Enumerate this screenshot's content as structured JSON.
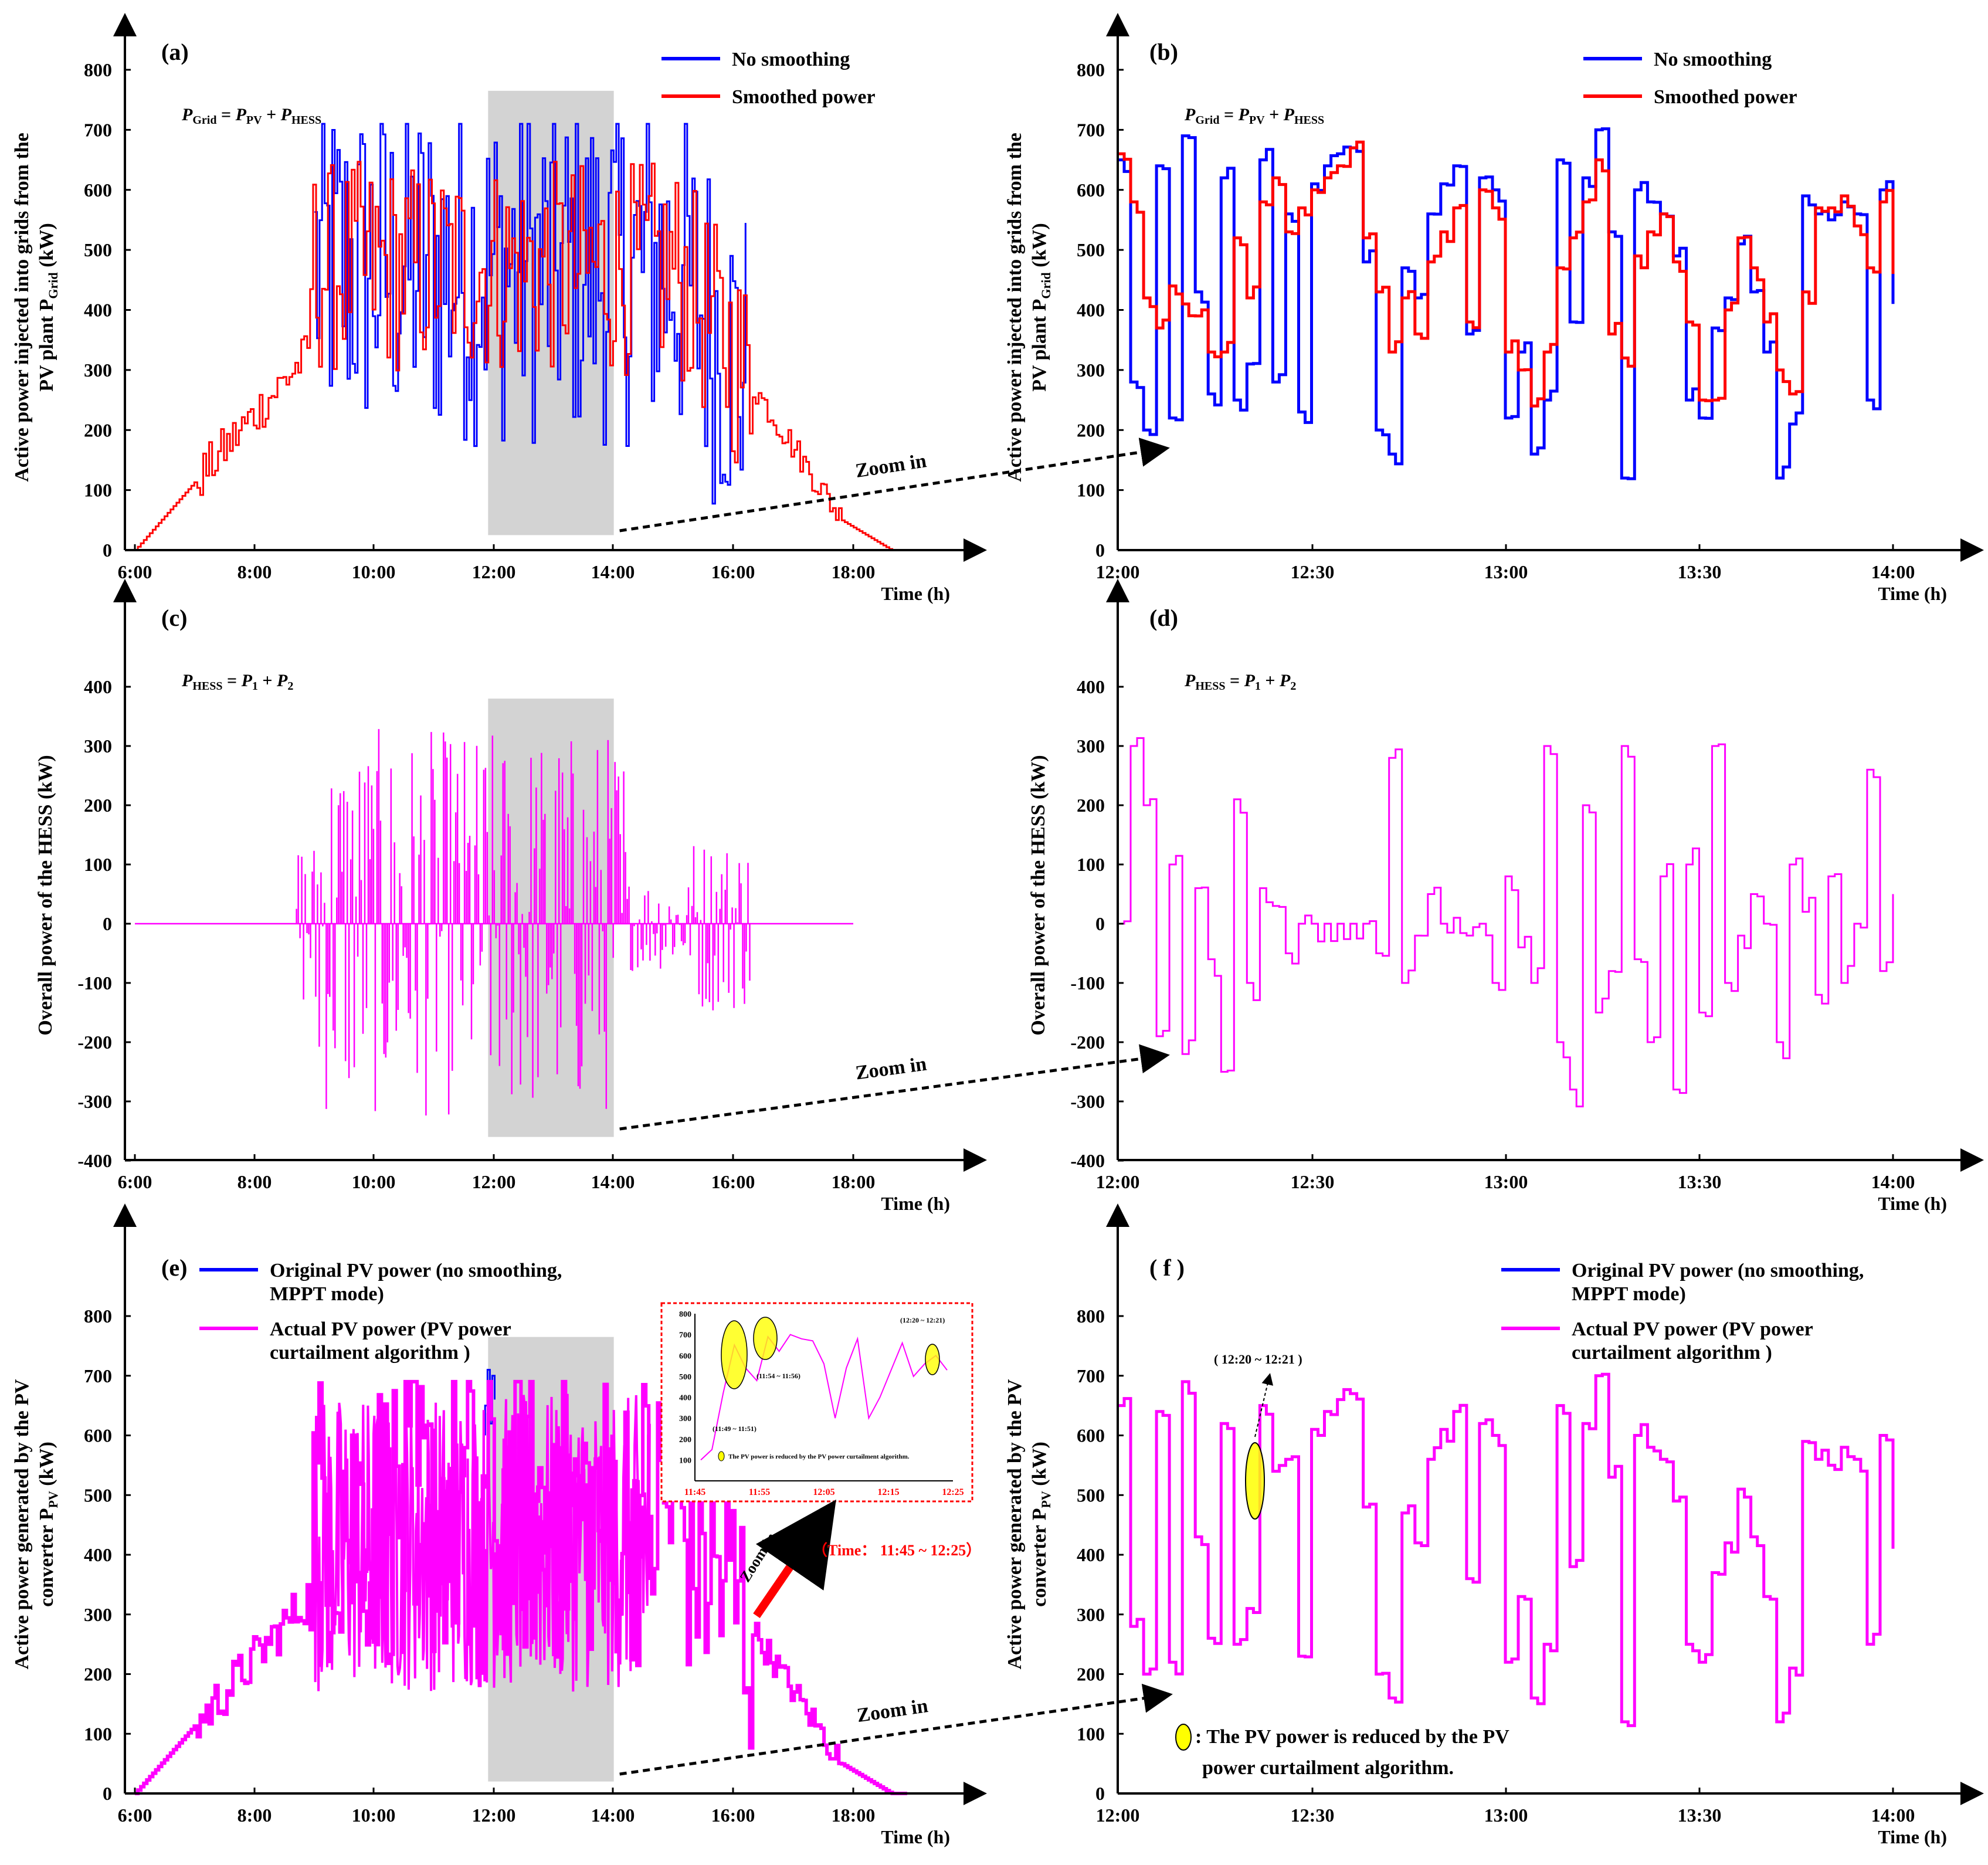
{
  "colors": {
    "no_smoothing": "#0000ff",
    "smoothed": "#ff0000",
    "hess": "#ff00ff",
    "pv_actual": "#ff00ff",
    "pv_original": "#0000ff",
    "zoom_shade": "#d3d3d3",
    "arrow_red": "#ff0000",
    "highlight": "#ffff00"
  },
  "chart_data": [
    {
      "id": "a",
      "type": "line",
      "panel_label": "(a)",
      "equation": {
        "lhs": "P",
        "lhs_sub": "Grid",
        "t1": "P",
        "t1_sub": "PV",
        "t2": "P",
        "t2_sub": "HESS"
      },
      "ylabel_lines": [
        "Active power injected into grids from the",
        "PV plant  P"
      ],
      "ylabel_sub": "Grid",
      "ylabel_tail": " (kW)",
      "xlabel": "Time (h)",
      "xticks": [
        "6:00",
        "8:00",
        "10:00",
        "12:00",
        "14:00",
        "16:00",
        "18:00"
      ],
      "xlim": [
        6,
        19.5
      ],
      "yticks": [
        "0",
        "100",
        "200",
        "300",
        "400",
        "500",
        "600",
        "700",
        "800"
      ],
      "ylim": [
        0,
        800
      ],
      "shade": {
        "x": [
          11.9,
          14.0
        ],
        "y": [
          25,
          765
        ]
      },
      "zoom_label": "Zoom in",
      "series": [
        {
          "name": "No smoothing",
          "color_key": "no_smoothing",
          "style": "spiky",
          "x_range": [
            9.0,
            16.2
          ]
        },
        {
          "name": "Smoothed power",
          "color_key": "smoothed",
          "style": "envelope",
          "x_range": [
            6.0,
            18.9
          ]
        }
      ]
    },
    {
      "id": "b",
      "type": "line",
      "panel_label": "(b)",
      "equation": {
        "lhs": "P",
        "lhs_sub": "Grid",
        "t1": "P",
        "t1_sub": "PV",
        "t2": "P",
        "t2_sub": "HESS"
      },
      "ylabel_lines": [
        "Active power injected into grids from the",
        "PV plant  P"
      ],
      "ylabel_sub": "Grid",
      "ylabel_tail": " (kW)",
      "xlabel": "Time (h)",
      "xticks": [
        "12:00",
        "12:30",
        "13:00",
        "13:30",
        "14:00"
      ],
      "xlim": [
        0,
        130
      ],
      "yticks": [
        "0",
        "100",
        "200",
        "300",
        "400",
        "500",
        "600",
        "700",
        "800"
      ],
      "ylim": [
        0,
        800
      ],
      "series": [
        {
          "name": "No smoothing",
          "color_key": "no_smoothing",
          "x": [
            0,
            2,
            4,
            6,
            8,
            10,
            12,
            14,
            16,
            18,
            20,
            22,
            24,
            26,
            28,
            30,
            32,
            34,
            36,
            38,
            40,
            42,
            44,
            46,
            48,
            50,
            52,
            54,
            56,
            58,
            60,
            62,
            64,
            66,
            68,
            70,
            72,
            74,
            76,
            78,
            80,
            82,
            84,
            86,
            88,
            90,
            92,
            94,
            96,
            98,
            100,
            102,
            104,
            106,
            108,
            110,
            112,
            114,
            116,
            118,
            120
          ],
          "y": [
            650,
            280,
            200,
            640,
            220,
            690,
            430,
            260,
            620,
            250,
            310,
            650,
            280,
            560,
            230,
            610,
            640,
            660,
            670,
            480,
            200,
            160,
            470,
            420,
            560,
            610,
            640,
            360,
            620,
            600,
            220,
            330,
            160,
            250,
            650,
            380,
            620,
            700,
            530,
            120,
            600,
            580,
            560,
            490,
            250,
            220,
            370,
            420,
            510,
            430,
            330,
            120,
            210,
            590,
            560,
            550,
            580,
            560,
            250,
            600,
            410
          ]
        },
        {
          "name": "Smoothed power",
          "color_key": "smoothed",
          "x": [
            0,
            2,
            4,
            6,
            8,
            10,
            12,
            14,
            16,
            18,
            20,
            22,
            24,
            26,
            28,
            30,
            32,
            34,
            36,
            38,
            40,
            42,
            44,
            46,
            48,
            50,
            52,
            54,
            56,
            58,
            60,
            62,
            64,
            66,
            68,
            70,
            72,
            74,
            76,
            78,
            80,
            82,
            84,
            86,
            88,
            90,
            92,
            94,
            96,
            98,
            100,
            102,
            104,
            106,
            108,
            110,
            112,
            114,
            116,
            118,
            120
          ],
          "y": [
            660,
            580,
            420,
            370,
            440,
            410,
            390,
            330,
            330,
            520,
            420,
            580,
            620,
            530,
            570,
            600,
            620,
            640,
            670,
            520,
            430,
            330,
            420,
            360,
            480,
            530,
            570,
            380,
            600,
            570,
            330,
            300,
            240,
            330,
            470,
            520,
            580,
            650,
            360,
            320,
            490,
            530,
            560,
            480,
            380,
            250,
            250,
            400,
            520,
            470,
            380,
            300,
            260,
            430,
            570,
            570,
            590,
            540,
            470,
            580,
            460
          ]
        }
      ]
    },
    {
      "id": "c",
      "type": "line",
      "panel_label": "(c)",
      "equation": {
        "lhs": "P",
        "lhs_sub": "HESS",
        "t1": "P",
        "t1_sub": "1",
        "t2": "P",
        "t2_sub": "2"
      },
      "ylabel_lines": [
        "Overall power of the HESS (kW)"
      ],
      "xlabel": "Time (h)",
      "xticks": [
        "6:00",
        "8:00",
        "10:00",
        "12:00",
        "14:00",
        "16:00",
        "18:00"
      ],
      "xlim": [
        6,
        19.5
      ],
      "yticks": [
        "-400",
        "-300",
        "-200",
        "-100",
        "0",
        "100",
        "200",
        "300",
        "400"
      ],
      "ylim": [
        -400,
        400
      ],
      "shade": {
        "x": [
          11.9,
          14.0
        ],
        "y": [
          -360,
          380
        ]
      },
      "zoom_label": "Zoom in",
      "series": [
        {
          "name": "HESS power",
          "color_key": "hess",
          "style": "hess_spiky",
          "x_range": [
            6.0,
            18.0
          ]
        }
      ]
    },
    {
      "id": "d",
      "type": "line",
      "panel_label": "(d)",
      "equation": {
        "lhs": "P",
        "lhs_sub": "HESS",
        "t1": "P",
        "t1_sub": "1",
        "t2": "P",
        "t2_sub": "2"
      },
      "ylabel_lines": [
        "Overall power of the HESS (kW)"
      ],
      "xlabel": "Time (h)",
      "xticks": [
        "12:00",
        "12:30",
        "13:00",
        "13:30",
        "14:00"
      ],
      "xlim": [
        0,
        130
      ],
      "yticks": [
        "-400",
        "-300",
        "-200",
        "-100",
        "0",
        "100",
        "200",
        "300",
        "400"
      ],
      "ylim": [
        -400,
        400
      ],
      "series": [
        {
          "name": "HESS power",
          "color_key": "hess",
          "x": [
            0,
            2,
            4,
            6,
            8,
            10,
            12,
            14,
            16,
            18,
            20,
            22,
            24,
            26,
            28,
            30,
            32,
            34,
            36,
            38,
            40,
            42,
            44,
            46,
            48,
            50,
            52,
            54,
            56,
            58,
            60,
            62,
            64,
            66,
            68,
            70,
            72,
            74,
            76,
            78,
            80,
            82,
            84,
            86,
            88,
            90,
            92,
            94,
            96,
            98,
            100,
            102,
            104,
            106,
            108,
            110,
            112,
            114,
            116,
            118,
            120
          ],
          "y": [
            0,
            300,
            200,
            -190,
            100,
            -220,
            60,
            -60,
            -250,
            210,
            -100,
            60,
            30,
            -50,
            0,
            0,
            0,
            0,
            0,
            0,
            -50,
            280,
            -100,
            -20,
            50,
            0,
            10,
            -20,
            0,
            -100,
            80,
            -40,
            -100,
            300,
            -200,
            -280,
            200,
            -150,
            -80,
            300,
            -60,
            -200,
            80,
            -280,
            100,
            -150,
            300,
            -100,
            -20,
            50,
            0,
            -200,
            100,
            20,
            -120,
            80,
            -100,
            0,
            260,
            -80,
            50
          ]
        }
      ]
    },
    {
      "id": "e",
      "type": "line",
      "panel_label": "(e)",
      "ylabel_lines": [
        "Active power generated by the PV",
        "converter P"
      ],
      "ylabel_sub": "PV",
      "ylabel_tail": " (kW)",
      "xlabel": "Time (h)",
      "xticks": [
        "6:00",
        "8:00",
        "10:00",
        "12:00",
        "14:00",
        "16:00",
        "18:00"
      ],
      "xlim": [
        6,
        19.5
      ],
      "yticks": [
        "0",
        "100",
        "200",
        "300",
        "400",
        "500",
        "600",
        "700",
        "800"
      ],
      "ylim": [
        0,
        900
      ],
      "shade": {
        "x": [
          11.9,
          14.0
        ],
        "y": [
          20,
          765
        ]
      },
      "zoom_label": "Zoom in",
      "legend": [
        {
          "line1": "Original PV power  (no smoothing,",
          "line2": "MPPT mode)",
          "color_key": "pv_original"
        },
        {
          "line1": "Actual PV power (PV power",
          "line2": "curtailment algorithm )",
          "color_key": "pv_actual"
        }
      ],
      "inset": {
        "xticks": [
          "11:45",
          "11:55",
          "12:05",
          "12:15",
          "12:25"
        ],
        "yticks": [
          "100",
          "200",
          "300",
          "400",
          "500",
          "600",
          "700",
          "800"
        ],
        "annotations": [
          "(11:49 ~ 11:51)",
          "(11:54 ~ 11:56)",
          "(12:20 ~ 12:21)"
        ],
        "note": "The PV power is reduced by the PV power curtailment algorithm.",
        "y": [
          100,
          150,
          420,
          650,
          540,
          480,
          690,
          620,
          700,
          680,
          670,
          560,
          300,
          540,
          680,
          300,
          400,
          530,
          660,
          500,
          560,
          600,
          530
        ]
      },
      "zoom_red_label": "Zoom in",
      "time_note": "（Time： 11:45 ~ 12:25）",
      "series": [
        {
          "name": "Original PV power  (no smoothing, MPPT mode)",
          "color_key": "pv_original",
          "style": "spiky_blue",
          "x_range": [
            11.85,
            12.05
          ]
        },
        {
          "name": "Actual PV power (PV power curtailment algorithm )",
          "color_key": "pv_actual",
          "style": "dense",
          "x_range": [
            6.0,
            18.9
          ]
        }
      ]
    },
    {
      "id": "f",
      "type": "line",
      "panel_label": "( f )",
      "ylabel_lines": [
        "Active power generated by the PV",
        "converter P"
      ],
      "ylabel_sub": "PV",
      "ylabel_tail": " (kW)",
      "xlabel": "Time (h)",
      "xticks": [
        "12:00",
        "12:30",
        "13:00",
        "13:30",
        "14:00"
      ],
      "xlim": [
        0,
        130
      ],
      "yticks": [
        "0",
        "100",
        "200",
        "300",
        "400",
        "500",
        "600",
        "700",
        "800"
      ],
      "ylim": [
        0,
        900
      ],
      "legend": [
        {
          "line1": "Original PV power  (no smoothing,",
          "line2": "MPPT mode)",
          "color_key": "pv_original"
        },
        {
          "line1": "Actual PV power (PV power",
          "line2": "curtailment algorithm )",
          "color_key": "pv_actual"
        }
      ],
      "annotation": "( 12:20 ~ 12:21 )",
      "note_line1": ": The PV power is reduced by the PV",
      "note_line2": "power curtailment algorithm.",
      "series": [
        {
          "name": "Actual PV power (PV power curtailment algorithm )",
          "color_key": "pv_actual",
          "x": [
            0,
            2,
            4,
            6,
            8,
            10,
            12,
            14,
            16,
            18,
            20,
            22,
            24,
            26,
            28,
            30,
            32,
            34,
            36,
            38,
            40,
            42,
            44,
            46,
            48,
            50,
            52,
            54,
            56,
            58,
            60,
            62,
            64,
            66,
            68,
            70,
            72,
            74,
            76,
            78,
            80,
            82,
            84,
            86,
            88,
            90,
            92,
            94,
            96,
            98,
            100,
            102,
            104,
            106,
            108,
            110,
            112,
            114,
            116,
            118,
            120
          ],
          "y": [
            650,
            280,
            200,
            640,
            220,
            690,
            430,
            260,
            620,
            250,
            310,
            650,
            540,
            560,
            230,
            610,
            640,
            660,
            670,
            480,
            200,
            160,
            470,
            420,
            560,
            610,
            640,
            360,
            620,
            600,
            220,
            330,
            160,
            250,
            650,
            380,
            620,
            700,
            530,
            120,
            600,
            580,
            560,
            490,
            250,
            220,
            370,
            420,
            510,
            430,
            330,
            120,
            210,
            590,
            560,
            550,
            580,
            560,
            250,
            600,
            410
          ]
        }
      ]
    }
  ]
}
